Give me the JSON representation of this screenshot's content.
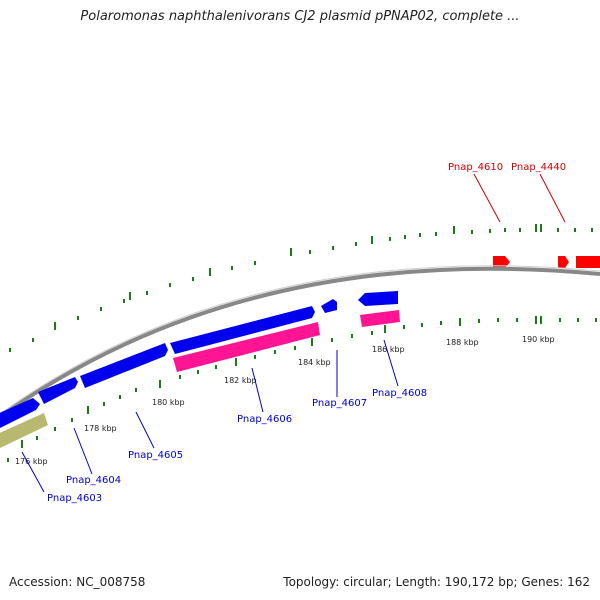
{
  "title": "Polaromonas naphthalenivorans CJ2 plasmid pPNAP02, complete ...",
  "footer": {
    "accession": "Accession: NC_008758",
    "summary": "Topology: circular; Length: 190,172 bp; Genes: 162"
  },
  "colors": {
    "backbone": "#888888",
    "tick": "#1a7a1a",
    "cds_forward": "#ff0000",
    "cds_reverse": "#0000ee",
    "pink": "#ff1493",
    "olive": "#b8b870",
    "label_forward": "#cc0000",
    "label_reverse": "#0000cc"
  },
  "scale_labels": [
    "176 kbp",
    "178 kbp",
    "180 kbp",
    "182 kbp",
    "184 kbp",
    "186 kbp",
    "188 kbp",
    "190 kbp"
  ],
  "gene_labels": {
    "forward": [
      "Pnap_4610",
      "Pnap_4440"
    ],
    "reverse": [
      "Pnap_4603",
      "Pnap_4604",
      "Pnap_4605",
      "Pnap_4606",
      "Pnap_4607",
      "Pnap_4608"
    ]
  }
}
